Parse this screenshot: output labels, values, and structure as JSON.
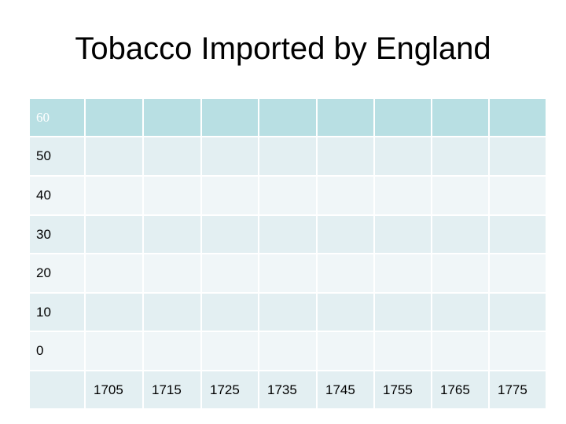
{
  "title": "Tobacco Imported by England",
  "table": {
    "row_labels": [
      "60",
      "50",
      "40",
      "30",
      "20",
      "10",
      "0"
    ],
    "column_labels": [
      "1705",
      "1715",
      "1725",
      "1735",
      "1745",
      "1755",
      "1765",
      "1775"
    ]
  }
}
